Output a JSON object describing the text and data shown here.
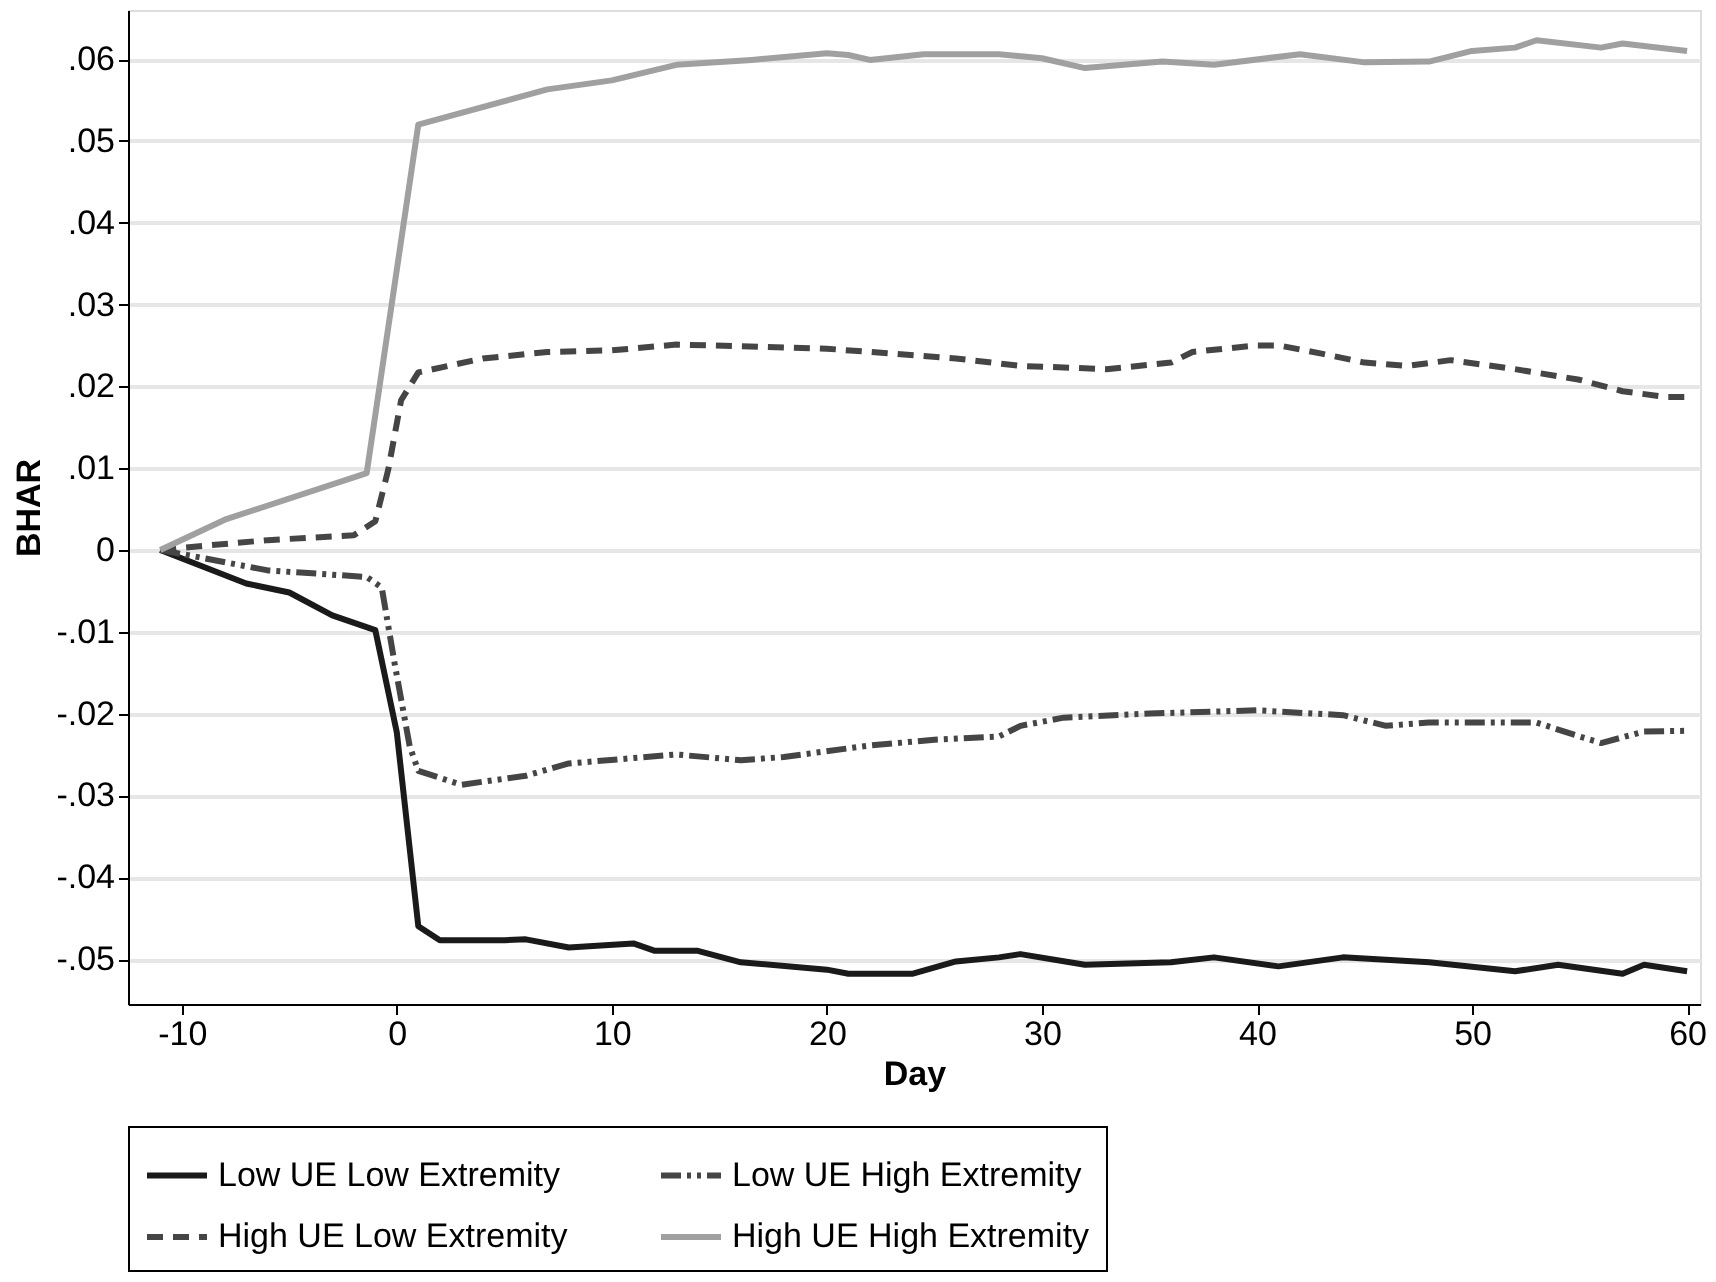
{
  "chart_data": {
    "type": "line",
    "xlabel": "Day",
    "ylabel": "BHAR",
    "xlim": [
      -12.5,
      60.6
    ],
    "xticks": [
      -10,
      0,
      10,
      20,
      30,
      40,
      50,
      60
    ],
    "ylim": [
      -0.0555,
      0.066
    ],
    "yticks": [
      {
        "value": -0.05,
        "label": "-.05"
      },
      {
        "value": -0.04,
        "label": "-.04"
      },
      {
        "value": -0.03,
        "label": "-.03"
      },
      {
        "value": -0.02,
        "label": "-.02"
      },
      {
        "value": -0.01,
        "label": "-.01"
      },
      0,
      {
        "value": 0.01,
        "label": ".01"
      },
      {
        "value": 0.02,
        "label": ".02"
      },
      {
        "value": 0.03,
        "label": ".03"
      },
      {
        "value": 0.04,
        "label": ".04"
      },
      {
        "value": 0.05,
        "label": ".05"
      },
      {
        "value": 0.06,
        "label": ".06"
      }
    ],
    "grid": "y",
    "legend": "bottom",
    "marker": "none",
    "series": [
      {
        "name": "Low UE Low Extremity",
        "color": "#1a1a1a",
        "line_style": "solid",
        "x": [
          -11,
          -7,
          -5,
          -3,
          -1,
          0,
          1,
          2,
          5,
          6,
          8,
          11,
          12,
          14,
          16,
          20,
          21,
          24,
          26,
          28,
          29,
          32,
          36,
          38,
          41,
          44,
          48,
          52,
          54,
          57,
          58,
          60
        ],
        "values": [
          0,
          -0.0041,
          -0.0052,
          -0.008,
          -0.0098,
          -0.0223,
          -0.046,
          -0.0477,
          -0.0477,
          -0.0476,
          -0.0486,
          -0.0481,
          -0.049,
          -0.049,
          -0.0504,
          -0.0513,
          -0.0518,
          -0.0518,
          -0.0503,
          -0.0498,
          -0.0494,
          -0.0507,
          -0.0504,
          -0.0498,
          -0.0509,
          -0.0498,
          -0.0504,
          -0.0515,
          -0.0507,
          -0.0518,
          -0.0507,
          -0.0515
        ]
      },
      {
        "name": "Low UE High Extremity",
        "color": "#454545",
        "line_style": "dashdot",
        "x": [
          -11,
          -6,
          -1.4,
          -0.7,
          -0.1,
          0.6,
          1,
          3,
          6,
          8,
          13,
          16,
          18,
          22,
          25,
          28,
          29,
          31,
          35,
          40,
          44,
          46,
          48,
          50,
          53,
          55,
          56,
          58,
          60
        ],
        "values": [
          0,
          -0.0025,
          -0.0033,
          -0.0046,
          -0.0139,
          -0.024,
          -0.027,
          -0.0287,
          -0.0276,
          -0.0261,
          -0.025,
          -0.0257,
          -0.0253,
          -0.0239,
          -0.0232,
          -0.0228,
          -0.0215,
          -0.0205,
          -0.02,
          -0.0196,
          -0.0202,
          -0.0215,
          -0.0211,
          -0.0211,
          -0.0211,
          -0.0228,
          -0.0236,
          -0.0222,
          -0.0221
        ]
      },
      {
        "name": "High UE Low Extremity",
        "color": "#454545",
        "line_style": "dashed",
        "x": [
          -11,
          -9,
          -6,
          -2,
          -1,
          -0.4,
          0.2,
          1,
          4,
          7,
          10,
          13,
          16,
          20,
          23,
          26,
          29,
          33,
          36,
          37,
          40,
          41,
          43,
          45,
          47,
          49,
          52,
          55,
          57,
          59,
          60
        ],
        "values": [
          0,
          0.0005,
          0.0012,
          0.0018,
          0.0035,
          0.0098,
          0.0183,
          0.0217,
          0.0234,
          0.0242,
          0.0244,
          0.0251,
          0.0249,
          0.0246,
          0.024,
          0.0234,
          0.0225,
          0.0221,
          0.0229,
          0.0242,
          0.025,
          0.025,
          0.024,
          0.0229,
          0.0225,
          0.0232,
          0.0221,
          0.0208,
          0.0194,
          0.0187,
          0.0187
        ]
      },
      {
        "name": "High UE High Extremity",
        "color": "#a0a0a0",
        "line_style": "solid",
        "x": [
          -11,
          -8,
          -1.4,
          1,
          7,
          10,
          13,
          16.5,
          20,
          21,
          22,
          24.5,
          28,
          30,
          32,
          35.6,
          38,
          42,
          45,
          48,
          50,
          52,
          53,
          56,
          57,
          60
        ],
        "values": [
          0,
          0.0037,
          0.0094,
          0.052,
          0.0563,
          0.0574,
          0.0593,
          0.0599,
          0.0607,
          0.0605,
          0.0599,
          0.0606,
          0.0606,
          0.0601,
          0.0589,
          0.0597,
          0.0593,
          0.0606,
          0.0596,
          0.0597,
          0.061,
          0.0614,
          0.0623,
          0.0614,
          0.0619,
          0.061
        ]
      }
    ]
  }
}
